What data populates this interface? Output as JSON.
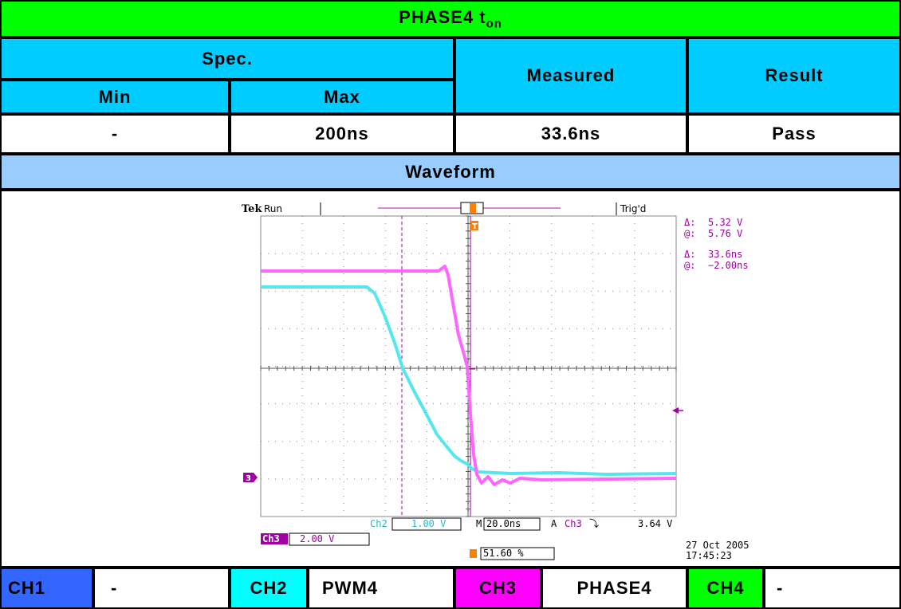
{
  "title": {
    "main": "PHASE4 t",
    "sub": "on"
  },
  "spec": {
    "label": "Spec.",
    "min_label": "Min",
    "max_label": "Max",
    "min_value": "-",
    "max_value": "200ns"
  },
  "measured": {
    "label": "Measured",
    "value": "33.6ns"
  },
  "result": {
    "label": "Result",
    "value": "Pass"
  },
  "waveform_label": "Waveform",
  "scope": {
    "brand": "Tek",
    "status": "Run",
    "trig_status": "Trig'd",
    "meas": [
      {
        "sym": "Δ:",
        "val": "5.32 V"
      },
      {
        "sym": "@:",
        "val": "5.76 V"
      },
      {
        "sym": "Δ:",
        "val": "33.6ns"
      },
      {
        "sym": "@:",
        "val": "−2.00ns"
      }
    ],
    "ch2_label": "Ch2",
    "ch2_scale": "1.00 V",
    "time_label": "M",
    "time_scale": "20.0ns",
    "trig_label": "A",
    "trig_src": "Ch3",
    "trig_slope": "⤵",
    "trig_level": "3.64 V",
    "ch3_label": "Ch3",
    "ch3_scale": "2.00 V",
    "trigpos": "51.60 %",
    "date": "27 Oct  2005",
    "time": "17:45:23",
    "ch3_marker": "3",
    "colors": {
      "ch2": "#55e6f0",
      "ch3": "#ff66ff",
      "ch3_dark": "#a000a0",
      "trig": "#ff8000"
    }
  },
  "legend": [
    {
      "ch": "CH1",
      "name": "-",
      "color": "#3366ff"
    },
    {
      "ch": "CH2",
      "name": "PWM4",
      "color": "#00ffff"
    },
    {
      "ch": "CH3",
      "name": "PHASE4",
      "color": "#ff00ff"
    },
    {
      "ch": "CH4",
      "name": "-",
      "color": "#00ff00"
    }
  ]
}
